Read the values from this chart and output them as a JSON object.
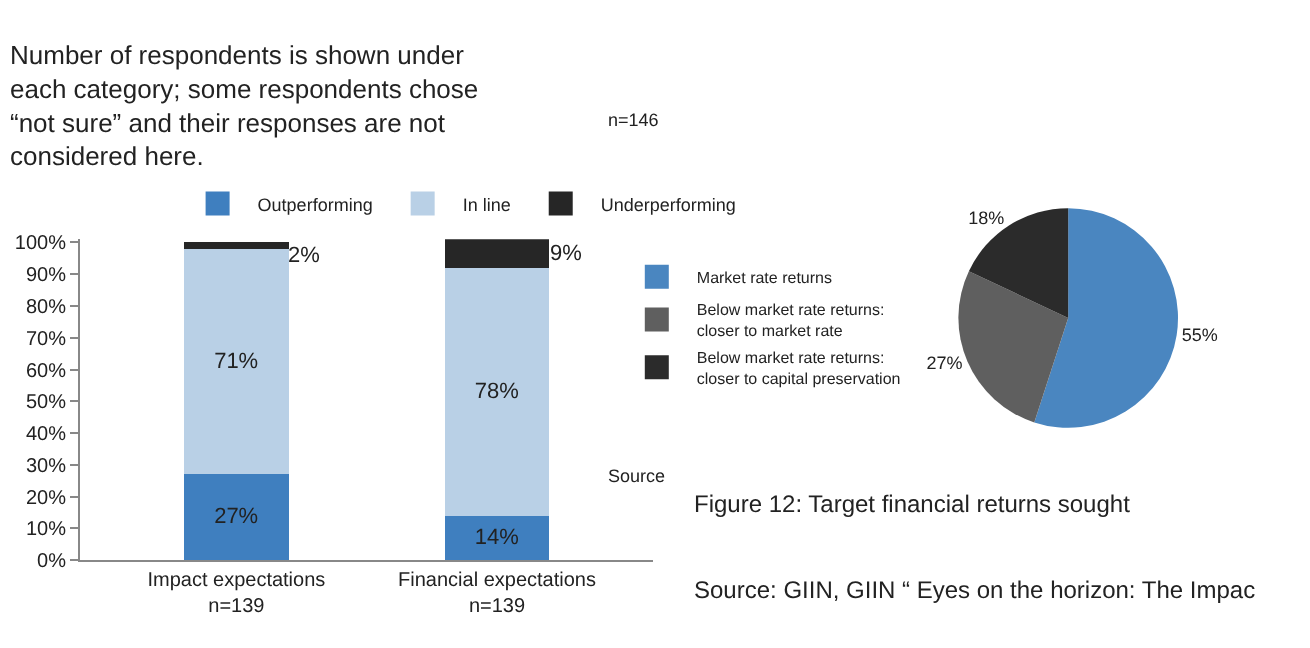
{
  "chart_data": [
    {
      "type": "bar",
      "title": "Number of respondents is shown under\neach category; some respondents chose\n“not sure” and their responses are not\nconsidered here.",
      "categories": [
        "Impact expectations\nn=139",
        "Financial expectations\nn=139"
      ],
      "stacked": true,
      "series": [
        {
          "name": "Outperforming",
          "color": "#3f7fbf",
          "values": [
            27,
            14
          ],
          "value_labels": [
            "27%",
            "14%"
          ]
        },
        {
          "name": "In line",
          "color": "#b9d0e6",
          "values": [
            71,
            78
          ],
          "value_labels": [
            "71%",
            "78%"
          ]
        },
        {
          "name": "Underperforming",
          "color": "#262626",
          "values": [
            2,
            9
          ],
          "value_labels": [
            "2%",
            "9%"
          ]
        }
      ],
      "ylim": [
        0,
        101
      ],
      "yticks": [
        {
          "value": 0,
          "label": "0%"
        },
        {
          "value": 10,
          "label": "10%"
        },
        {
          "value": 20,
          "label": "20%"
        },
        {
          "value": 30,
          "label": "30%"
        },
        {
          "value": 40,
          "label": "40%"
        },
        {
          "value": 50,
          "label": "50%"
        },
        {
          "value": 60,
          "label": "60%"
        },
        {
          "value": 70,
          "label": "70%"
        },
        {
          "value": 80,
          "label": "80%"
        },
        {
          "value": 90,
          "label": "90%"
        },
        {
          "value": 100,
          "label": "100%"
        }
      ],
      "legend": "top"
    },
    {
      "type": "pie",
      "title": "Figure 12: Target financial returns sought",
      "categories": [
        "Market rate returns",
        "Below market rate returns:\ncloser to market rate",
        "Below market rate returns:\ncloser to capital preservation"
      ],
      "values": [
        55,
        27,
        18
      ],
      "colors": [
        "#4a86c0",
        "#5f5f5f",
        "#2b2b2b"
      ],
      "value_labels": [
        "55%",
        "27%",
        "18%"
      ],
      "legend": "left",
      "annotations": [
        "n=146",
        "Source",
        "Source: GIIN, GIIN “ Eyes on the horizon: The Impac"
      ]
    }
  ]
}
